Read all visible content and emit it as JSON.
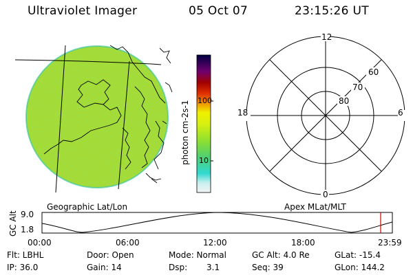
{
  "header": {
    "instrument": "Ultraviolet Imager",
    "date": "05 Oct 07",
    "time": "23:15:26 UT"
  },
  "left_panel": {
    "label": "Geographic Lat/Lon",
    "colors": {
      "outline": "#000000",
      "disk_base": "#9ccc2e",
      "grid": "#000000"
    }
  },
  "colorbar": {
    "unit_label": "photon cm-2s-1",
    "ticks": [
      "100",
      "10"
    ],
    "colors": [
      "#ffffff",
      "#a0f0f0",
      "#30d8c8",
      "#60d060",
      "#a8e020",
      "#f0f000",
      "#f0a000",
      "#e03000",
      "#a00000",
      "#700070",
      "#000040"
    ]
  },
  "right_panel": {
    "label": "Apex MLat/MLT",
    "mlt_labels": [
      "12",
      "6",
      "0",
      "18"
    ],
    "mlat_labels": [
      "60",
      "70",
      "80"
    ]
  },
  "altitude_plot": {
    "ylabel": "GC Alt",
    "yticks": [
      "9.0",
      "1.8"
    ],
    "xticks": [
      "00:00",
      "06:00",
      "12:00",
      "18:00",
      "23:59"
    ],
    "marker_color": "#cc0000"
  },
  "status": {
    "row1": {
      "flt": "Flt: LBHL",
      "door": "Door: Open",
      "mode": "Mode: Normal",
      "gcalt": "GC Alt: 4.0 Re",
      "glat": "GLat: -15.4"
    },
    "row2": {
      "ip": "IP: 36.0",
      "gain": "Gain: 14",
      "dsp_label": "Dsp:",
      "dsp_value": "3.1",
      "seq": "Seq: 39",
      "glon": "GLon: 144.2"
    }
  }
}
